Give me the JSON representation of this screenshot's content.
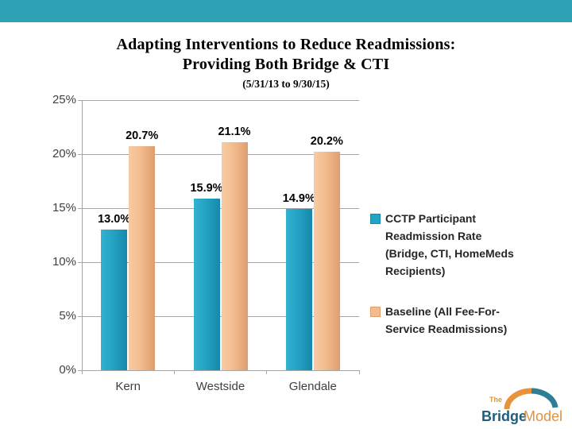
{
  "slide": {
    "accent_bar_color": "#2ea1b6"
  },
  "chart_data": {
    "type": "bar",
    "title": "Adapting Interventions to Reduce Readmissions: Providing Both Bridge & CTI",
    "title_lines": [
      "Adapting Interventions to Reduce Readmissions:",
      "Providing Both Bridge & CTI"
    ],
    "subtitle": "(5/31/13 to 9/30/15)",
    "categories": [
      "Kern",
      "Westside",
      "Glendale"
    ],
    "series": [
      {
        "name": "CCTP Participant Readmission Rate (Bridge, CTI, HomeMeds Recipients)",
        "values": [
          13.0,
          15.9,
          14.9
        ],
        "labels": [
          "13.0%",
          "15.9%",
          "14.9%"
        ],
        "color": "#23a3c4",
        "color_light": "#35b0d0",
        "color_dark": "#1887aa"
      },
      {
        "name": "Baseline  (All Fee-For-Service Readmissions)",
        "values": [
          20.7,
          21.1,
          20.2
        ],
        "labels": [
          "20.7%",
          "21.1%",
          "20.2%"
        ],
        "color": "#f3bc8e",
        "color_light": "#f8cba4",
        "color_dark": "#de9e6e"
      }
    ],
    "xlabel": "",
    "ylabel": "",
    "ylim": [
      0,
      25
    ],
    "ytick_step": 5,
    "ytick_labels": [
      "0%",
      "5%",
      "10%",
      "15%",
      "20%",
      "25%"
    ],
    "grid": true,
    "grid_color": "#a6a6a6",
    "legend_position": "right"
  },
  "logo": {
    "prefix": "The",
    "name_primary": "Bridge",
    "name_secondary": "Model",
    "primary_color": "#1d5e7c",
    "accent_color": "#e2913c",
    "arch_left_color": "#e8923a",
    "arch_right_color": "#2e7f96"
  }
}
